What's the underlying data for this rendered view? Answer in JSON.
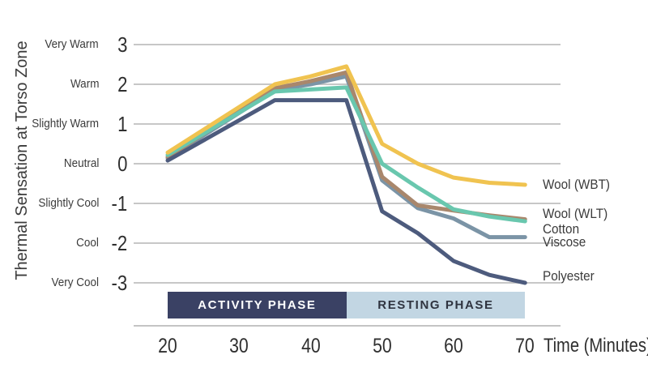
{
  "chart_data": {
    "type": "line",
    "title": "",
    "ylabel": "Thermal Sensation at Torso Zone",
    "xlabel": "Time (Minutes)",
    "x": [
      20,
      35,
      40,
      45,
      50,
      55,
      60,
      65,
      70
    ],
    "xticks": [
      20,
      30,
      40,
      50,
      60,
      70
    ],
    "xlim": [
      20,
      70
    ],
    "ylim": [
      -3,
      3
    ],
    "grid": true,
    "yticks": [
      {
        "value": 3,
        "label": "Very Warm"
      },
      {
        "value": 2,
        "label": "Warm"
      },
      {
        "value": 1,
        "label": "Slightly Warm"
      },
      {
        "value": 0,
        "label": "Neutral"
      },
      {
        "value": -1,
        "label": "Slightly Cool"
      },
      {
        "value": -2,
        "label": "Cool"
      },
      {
        "value": -3,
        "label": "Very Cool"
      }
    ],
    "series": [
      {
        "name": "Wool (WBT)",
        "color": "#F0C350",
        "values": [
          0.28,
          2.0,
          2.2,
          2.45,
          0.5,
          0.0,
          -0.35,
          -0.48,
          -0.53
        ]
      },
      {
        "name": "Wool (WLT)",
        "color": "#69C7AE",
        "values": [
          0.22,
          1.82,
          1.87,
          1.92,
          0.0,
          -0.6,
          -1.15,
          -1.33,
          -1.45
        ]
      },
      {
        "name": "Cotton",
        "color": "#A9876C",
        "values": [
          0.17,
          1.9,
          2.08,
          2.3,
          -0.33,
          -1.05,
          -1.18,
          -1.3,
          -1.4
        ]
      },
      {
        "name": "Viscose",
        "color": "#7B94A6",
        "values": [
          0.14,
          1.85,
          2.0,
          2.2,
          -0.42,
          -1.12,
          -1.38,
          -1.85,
          -1.85
        ]
      },
      {
        "name": "Polyester",
        "color": "#4D5B7D",
        "values": [
          0.08,
          1.6,
          1.6,
          1.6,
          -1.2,
          -1.75,
          -2.45,
          -2.8,
          -3.0
        ]
      }
    ],
    "phases": [
      {
        "label": "ACTIVITY PHASE",
        "start": 20,
        "end": 45,
        "bg": "#3A4164",
        "fg": "#FFFFFF"
      },
      {
        "label": "RESTING PHASE",
        "start": 45,
        "end": 70,
        "bg": "#C2D6E3",
        "fg": "#2F3440"
      }
    ],
    "colors": {
      "gridline": "#C7C7C7",
      "axis_line": "#C4C4C4",
      "text": "#3B3B3B"
    },
    "legend_position": "right of line ends"
  }
}
